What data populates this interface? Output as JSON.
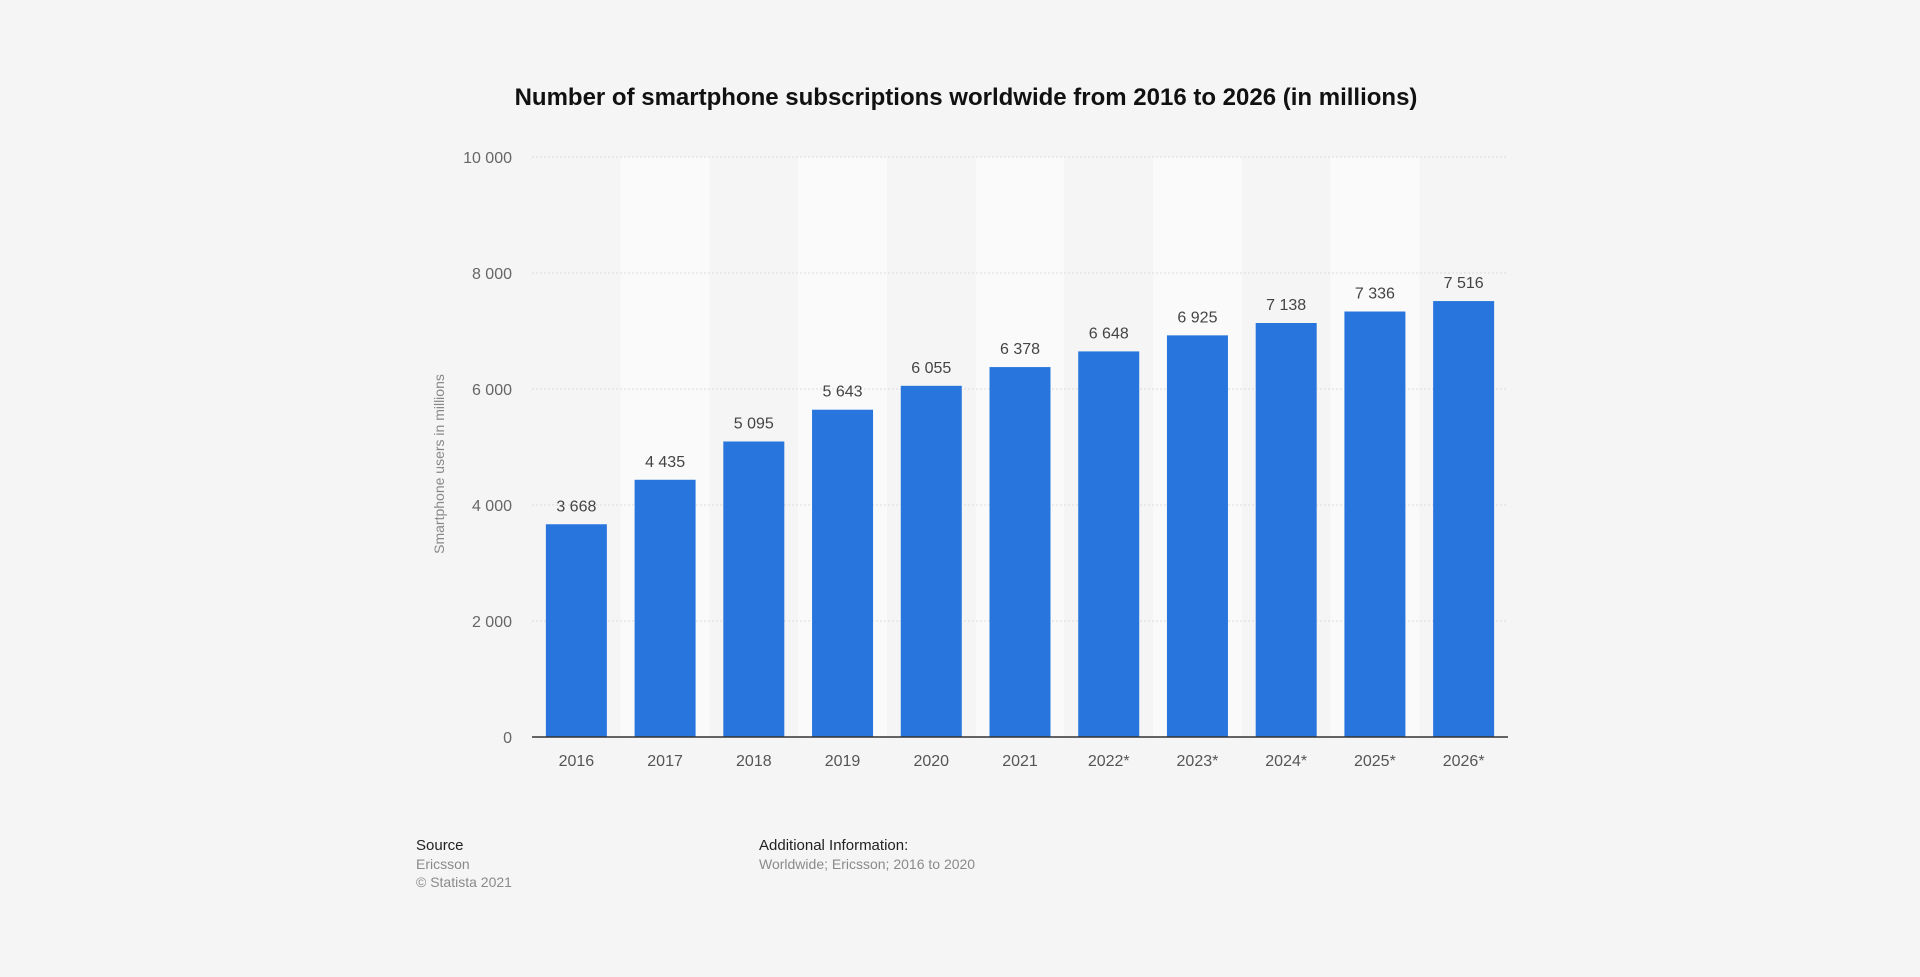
{
  "chart_data": {
    "type": "bar",
    "title": "Number of smartphone subscriptions worldwide from 2016 to 2026 (in millions)",
    "xlabel": "",
    "ylabel": "Smartphone users in millions",
    "categories": [
      "2016",
      "2017",
      "2018",
      "2019",
      "2020",
      "2021",
      "2022*",
      "2023*",
      "2024*",
      "2025*",
      "2026*"
    ],
    "values": [
      3668,
      4435,
      5095,
      5643,
      6055,
      6378,
      6648,
      6925,
      7138,
      7336,
      7516
    ],
    "value_labels": [
      "3 668",
      "4 435",
      "5 095",
      "5 643",
      "6 055",
      "6 378",
      "6 648",
      "6 925",
      "7 138",
      "7 336",
      "7 516"
    ],
    "ylim": [
      0,
      10000
    ],
    "yticks": [
      0,
      2000,
      4000,
      6000,
      8000,
      10000
    ],
    "ytick_labels": [
      "0",
      "2 000",
      "4 000",
      "6 000",
      "8 000",
      "10 000"
    ],
    "grid": true,
    "legend": "none",
    "bar_color": "#2875dd"
  },
  "footer": {
    "source_heading": "Source",
    "source_name": "Ericsson",
    "copyright": "© Statista 2021",
    "additional_heading": "Additional Information:",
    "additional_text": "Worldwide; Ericsson; 2016 to 2020"
  }
}
